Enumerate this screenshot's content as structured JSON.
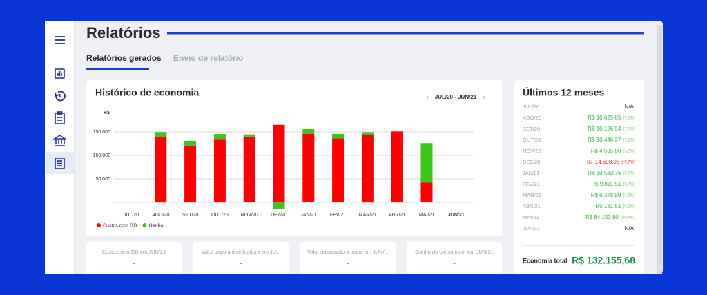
{
  "page": {
    "title": "Relatórios",
    "tabs": [
      "Relatórios gerados",
      "Envio de relatório"
    ]
  },
  "chart_data": {
    "type": "bar",
    "title": "Histórico de economia",
    "period": "JUL/20 - JUN/21",
    "y_unit": "R$",
    "stacked": true,
    "categories": [
      "JUL/20",
      "AGO/20",
      "SET/20",
      "OUT/20",
      "NOV/20",
      "DEZ/20",
      "JAN/21",
      "FEV/21",
      "MAR/21",
      "ABR/21",
      "MAI/21",
      "JUN/21"
    ],
    "series": [
      {
        "name": "Custos com GD",
        "color": "#ff0000",
        "values": [
          null,
          139000,
          121000,
          135000,
          140000,
          165000,
          146000,
          136000,
          143000,
          151000,
          42000,
          null
        ]
      },
      {
        "name": "Ganho",
        "color": "#3ec41c",
        "values": [
          null,
          10625.85,
          10126.94,
          10446.37,
          4595.8,
          -14698.95,
          10533.76,
          9811.51,
          6378.99,
          181.51,
          84153.9,
          null
        ]
      }
    ],
    "ylim": [
      -16000,
      185000
    ],
    "yticks": [
      {
        "value": 50000,
        "label": "50.000"
      },
      {
        "value": 100000,
        "label": "100.000"
      },
      {
        "value": 150000,
        "label": "150.000"
      }
    ],
    "grid": true
  },
  "summary": {
    "title": "Últimos 12 meses",
    "rows": [
      {
        "month": "JUL/20",
        "value": "N/A"
      },
      {
        "month": "AGO/20",
        "value": "R$ 10.625,85",
        "percent": "(7,1%)"
      },
      {
        "month": "SET/20",
        "value": "R$ 10.126,94",
        "percent": "(7,7%)"
      },
      {
        "month": "OUT/20",
        "value": "R$ 10.446,37",
        "percent": "(7,2%)"
      },
      {
        "month": "NOV/20",
        "value": "R$ 4.595,80",
        "percent": "(3,2%)"
      },
      {
        "month": "DEZ/20",
        "value": "R$ -14.698,95",
        "percent": "(-9,7%)"
      },
      {
        "month": "JAN/21",
        "value": "R$ 10.533,76",
        "percent": "(6,7%)"
      },
      {
        "month": "FEV/21",
        "value": "R$ 9.811,51",
        "percent": "(6,7%)"
      },
      {
        "month": "MAR/21",
        "value": "R$ 6.378,99",
        "percent": "(4,3%)"
      },
      {
        "month": "ABR/21",
        "value": "R$ 181,51",
        "percent": "(0,1%)"
      },
      {
        "month": "MAI/21",
        "value": "R$ 84.153,90",
        "percent": "(66,4%)"
      },
      {
        "month": "JUN/21",
        "value": "N/A"
      }
    ],
    "total_label": "Economia total",
    "total_value": "R$ 132.155,68"
  },
  "cards": [
    {
      "label": "Custos sem GD em JUN/21",
      "value": "-"
    },
    {
      "label": "Valor pago à distribuidora em JU...",
      "value": "-"
    },
    {
      "label": "Valor repassado à usina em JUN/...",
      "value": "-"
    },
    {
      "label": "Ganho do consumidor em JUN/21",
      "value": "-"
    }
  ]
}
